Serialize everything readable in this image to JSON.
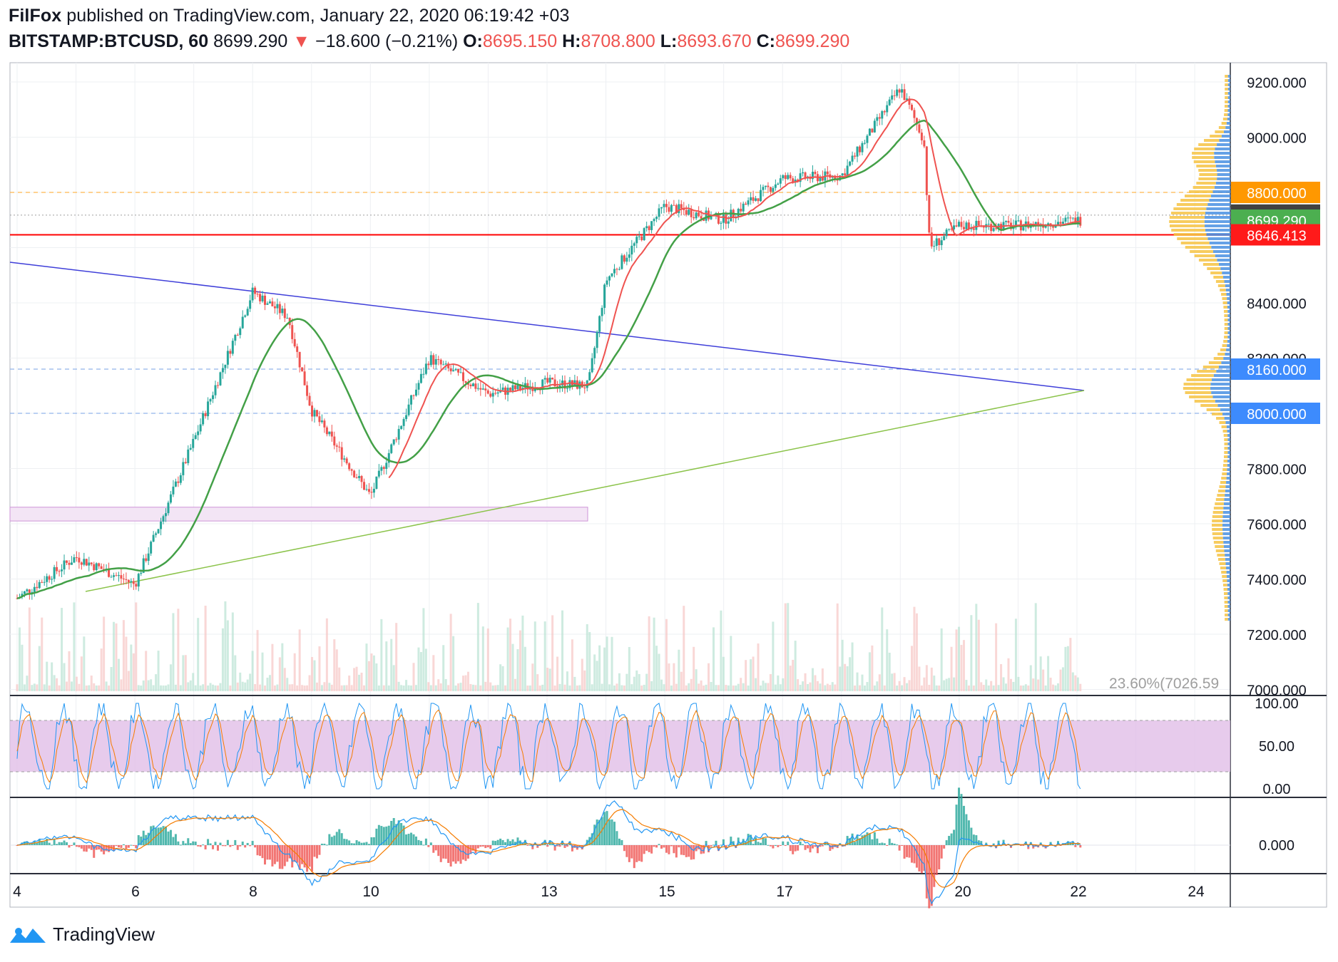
{
  "header": {
    "author": "FilFox",
    "published": "published on TradingView.com, January 22, 2020 06:19:42 +03",
    "symbol": "BITSTAMP:BTCUSD, 60",
    "last": "8699.290",
    "change": "−18.600 (−0.21%)",
    "o_label": "O:",
    "o": "8695.150",
    "h_label": "H:",
    "h": "8708.800",
    "l_label": "L:",
    "l": "8693.670",
    "c_label": "C:",
    "c": "8699.290"
  },
  "footer": {
    "brand": "TradingView"
  },
  "colors": {
    "up": "#26a69a",
    "down": "#ef5350",
    "ma_fast": "#ef5350",
    "ma_slow": "#43a047",
    "trend_down": "#3f3fd9",
    "trend_up": "#8bc34a",
    "level": "#2962ff",
    "stoch_k": "#2196f3",
    "stoch_d": "#f57c00",
    "stoch_band": "#e1bee7",
    "vp_blue": "#4a90e2",
    "vp_yellow": "#f6c343"
  },
  "chart_data": {
    "type": "candlestick",
    "title": "BITSTAMP:BTCUSD, 60",
    "x_tick_labels": [
      "4",
      "6",
      "8",
      "10",
      "13",
      "15",
      "17",
      "20",
      "22",
      "24"
    ],
    "y_tick_labels": [
      "9200.000",
      "9000.000",
      "8400.000",
      "8200.000",
      "7800.000",
      "7600.000",
      "7400.000",
      "7200.000",
      "7000.000"
    ],
    "price_badges": [
      {
        "value": "8800.000",
        "color": "#ff9800",
        "text_color": "#ffffff"
      },
      {
        "value": "8717.890",
        "color": "#424242",
        "text_color": "#ffffff"
      },
      {
        "value": "8699.290",
        "color": "#4caf50",
        "text_color": "#ffffff"
      },
      {
        "value": "8646.413",
        "color": "#ff1a1a",
        "text_color": "#ffffff"
      },
      {
        "value": "8160.000",
        "color": "#3d8bfd",
        "text_color": "#ffffff"
      },
      {
        "value": "8000.000",
        "color": "#3d8bfd",
        "text_color": "#ffffff"
      }
    ],
    "fib_label": "23.60%(7026.59",
    "horizontal_levels": [
      8800,
      8717.89,
      8646.413,
      8160,
      8000
    ],
    "price_series_approx": [
      {
        "x": "4",
        "close": 7330
      },
      {
        "x": "5",
        "close": 7480
      },
      {
        "x": "6",
        "close": 7380
      },
      {
        "x": "7",
        "close": 7900
      },
      {
        "x": "8",
        "close": 8440
      },
      {
        "x": "8.6",
        "close": 8350
      },
      {
        "x": "9",
        "close": 8010
      },
      {
        "x": "10",
        "close": 7700
      },
      {
        "x": "11",
        "close": 8200
      },
      {
        "x": "12",
        "close": 8070
      },
      {
        "x": "13",
        "close": 8110
      },
      {
        "x": "13.7",
        "close": 8100
      },
      {
        "x": "14",
        "close": 8480
      },
      {
        "x": "15",
        "close": 8750
      },
      {
        "x": "16",
        "close": 8700
      },
      {
        "x": "17",
        "close": 8850
      },
      {
        "x": "18",
        "close": 8860
      },
      {
        "x": "19",
        "close": 9180
      },
      {
        "x": "19.4",
        "close": 8990
      },
      {
        "x": "19.5",
        "close": 8600
      },
      {
        "x": "20",
        "close": 8680
      },
      {
        "x": "21",
        "close": 8680
      },
      {
        "x": "22",
        "close": 8699.29
      }
    ],
    "stochastic": {
      "y_tick_labels": [
        "100.00",
        "50.00",
        "0.00"
      ],
      "band": [
        20,
        80
      ]
    },
    "macd": {
      "y_tick_labels": [
        "0.000"
      ]
    }
  }
}
